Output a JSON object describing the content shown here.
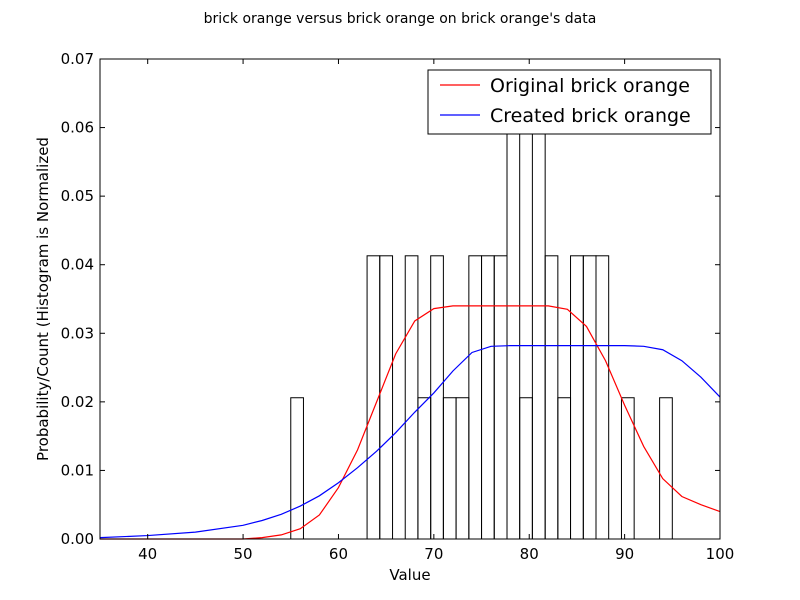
{
  "chart_data": {
    "type": "histogram_with_lines",
    "title": "brick orange versus brick orange on brick orange's data",
    "xlabel": "Value",
    "ylabel": "Probability/Count (Histogram is Normalized",
    "xlim": [
      35,
      100
    ],
    "ylim": [
      0,
      0.07
    ],
    "x_ticks": [
      40,
      50,
      60,
      70,
      80,
      90,
      100
    ],
    "y_ticks": [
      0.0,
      0.01,
      0.02,
      0.03,
      0.04,
      0.05,
      0.06,
      0.07
    ],
    "x_tick_labels": [
      "40",
      "50",
      "60",
      "70",
      "80",
      "90",
      "100"
    ],
    "y_tick_labels": [
      "0.00",
      "0.01",
      "0.02",
      "0.03",
      "0.04",
      "0.05",
      "0.06",
      "0.07"
    ],
    "legend_position": "top-right",
    "histogram": {
      "bin_width": 1.33,
      "bins": [
        {
          "x0": 55.0,
          "x1": 56.33,
          "value": 0.0206
        },
        {
          "x0": 63.0,
          "x1": 64.33,
          "value": 0.0413
        },
        {
          "x0": 64.33,
          "x1": 65.67,
          "value": 0.0413
        },
        {
          "x0": 67.0,
          "x1": 68.33,
          "value": 0.0413
        },
        {
          "x0": 68.33,
          "x1": 69.67,
          "value": 0.0206
        },
        {
          "x0": 69.67,
          "x1": 71.0,
          "value": 0.0413
        },
        {
          "x0": 71.0,
          "x1": 72.33,
          "value": 0.0206
        },
        {
          "x0": 72.33,
          "x1": 73.67,
          "value": 0.0206
        },
        {
          "x0": 73.67,
          "x1": 75.0,
          "value": 0.0413
        },
        {
          "x0": 75.0,
          "x1": 76.33,
          "value": 0.0413
        },
        {
          "x0": 76.33,
          "x1": 77.67,
          "value": 0.0413
        },
        {
          "x0": 77.67,
          "x1": 79.0,
          "value": 0.0619
        },
        {
          "x0": 79.0,
          "x1": 80.33,
          "value": 0.0206
        },
        {
          "x0": 80.33,
          "x1": 81.67,
          "value": 0.0619
        },
        {
          "x0": 81.67,
          "x1": 83.0,
          "value": 0.0413
        },
        {
          "x0": 83.0,
          "x1": 84.33,
          "value": 0.0206
        },
        {
          "x0": 84.33,
          "x1": 85.67,
          "value": 0.0413
        },
        {
          "x0": 85.67,
          "x1": 87.0,
          "value": 0.0413
        },
        {
          "x0": 87.0,
          "x1": 88.33,
          "value": 0.0413
        },
        {
          "x0": 89.67,
          "x1": 91.0,
          "value": 0.0206
        },
        {
          "x0": 93.67,
          "x1": 95.0,
          "value": 0.0206
        }
      ]
    },
    "series": [
      {
        "name": "Original brick orange",
        "color": "#ff0000",
        "x": [
          35,
          40,
          45,
          50,
          52,
          54,
          56,
          58,
          60,
          62,
          64,
          66,
          68,
          70,
          72,
          74,
          76,
          78,
          80,
          82,
          84,
          86,
          88,
          90,
          92,
          94,
          96,
          98,
          100
        ],
        "y": [
          0.0,
          0.0,
          0.0,
          0.0,
          0.0002,
          0.0006,
          0.0015,
          0.0035,
          0.0075,
          0.013,
          0.02,
          0.027,
          0.0318,
          0.0336,
          0.034,
          0.034,
          0.034,
          0.034,
          0.034,
          0.034,
          0.0335,
          0.031,
          0.026,
          0.0195,
          0.0135,
          0.0088,
          0.0062,
          0.005,
          0.004
        ]
      },
      {
        "name": "Created brick orange",
        "color": "#0000ff",
        "x": [
          35,
          40,
          45,
          50,
          52,
          54,
          56,
          58,
          60,
          62,
          64,
          66,
          68,
          70,
          72,
          74,
          76,
          78,
          80,
          82,
          84,
          86,
          88,
          90,
          92,
          94,
          96,
          98,
          100
        ],
        "y": [
          0.0002,
          0.0005,
          0.001,
          0.002,
          0.0027,
          0.0036,
          0.0048,
          0.0063,
          0.0082,
          0.0104,
          0.0128,
          0.0155,
          0.0185,
          0.0213,
          0.0245,
          0.0272,
          0.0281,
          0.0282,
          0.0282,
          0.0282,
          0.0282,
          0.0282,
          0.0282,
          0.0282,
          0.0281,
          0.0276,
          0.026,
          0.0236,
          0.0207
        ]
      }
    ]
  }
}
